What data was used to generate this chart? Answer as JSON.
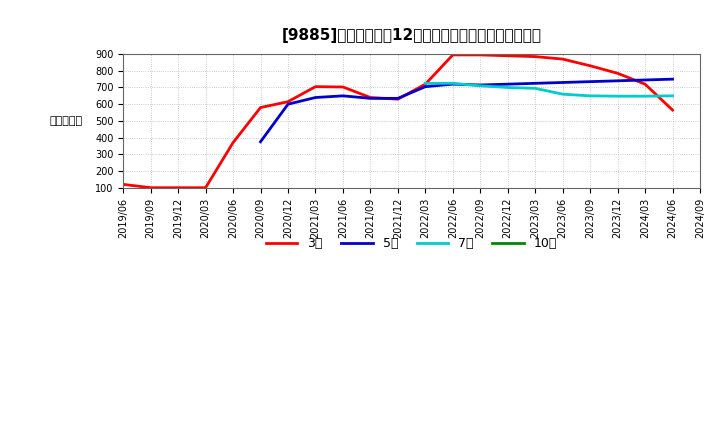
{
  "title": "[9885]　当期純利益12か月移動合計の標準偏差の推移",
  "ylabel": "（百万円）",
  "ylim": [
    100,
    900
  ],
  "yticks": [
    100,
    200,
    300,
    400,
    500,
    600,
    700,
    800,
    900
  ],
  "background_color": "#ffffff",
  "plot_bg_color": "#ffffff",
  "grid_color": "#aaaaaa",
  "series_3": {
    "color": "#ff0000",
    "x": [
      0,
      1,
      2,
      3,
      4,
      5,
      6,
      7,
      8,
      9,
      10,
      11,
      12,
      13,
      14,
      15,
      16,
      17,
      18,
      19,
      20
    ],
    "y": [
      120,
      100,
      100,
      100,
      370,
      580,
      615,
      705,
      703,
      640,
      630,
      720,
      895,
      895,
      890,
      885,
      870,
      830,
      785,
      720,
      565
    ]
  },
  "series_5": {
    "color": "#0000cc",
    "x": [
      5,
      6,
      7,
      8,
      9,
      10,
      11,
      12,
      13,
      14,
      15,
      16,
      17,
      18,
      19,
      20
    ],
    "y": [
      375,
      600,
      640,
      650,
      635,
      635,
      705,
      720,
      715,
      720,
      725,
      730,
      735,
      740,
      745,
      750
    ]
  },
  "series_7": {
    "color": "#00cccc",
    "x": [
      11,
      12,
      13,
      14,
      15,
      16,
      17,
      18,
      19,
      20
    ],
    "y": [
      725,
      725,
      710,
      700,
      695,
      660,
      650,
      648,
      648,
      650
    ]
  },
  "series_10": {
    "color": "#008800",
    "x": [],
    "y": []
  },
  "xtick_labels": [
    "2019/06",
    "2019/09",
    "2019/12",
    "2020/03",
    "2020/06",
    "2020/09",
    "2020/12",
    "2021/03",
    "2021/06",
    "2021/09",
    "2021/12",
    "2022/03",
    "2022/06",
    "2022/09",
    "2022/12",
    "2023/03",
    "2023/06",
    "2023/09",
    "2023/12",
    "2024/03",
    "2024/06",
    "2024/09"
  ],
  "legend_labels": [
    "3年",
    "5年",
    "7年",
    "10年"
  ],
  "legend_colors": [
    "#ff0000",
    "#0000cc",
    "#00cccc",
    "#008800"
  ],
  "title_fontsize": 11,
  "axis_fontsize": 8,
  "tick_fontsize": 7,
  "legend_fontsize": 9,
  "linewidth": 2.0
}
